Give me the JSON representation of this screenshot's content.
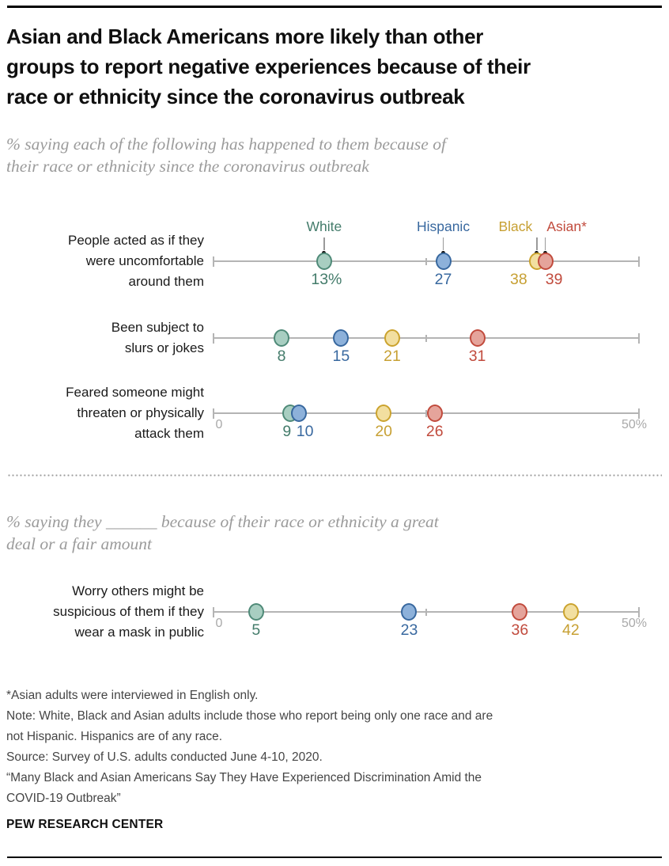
{
  "header": {
    "title_lines": [
      "Asian and Black Americans more likely than other",
      "groups to report negative experiences because of their",
      "race or ethnicity since the coronavirus outbreak"
    ],
    "subtitle_top_lines": [
      "% saying each of the following has happened to them because of",
      "their race or ethnicity since the coronavirus outbreak"
    ],
    "subtitle_bottom_lines": [
      "% saying they ______ because of their race or ethnicity a great",
      "deal or a fair amount"
    ]
  },
  "groups": {
    "white": {
      "label": "White",
      "fill": "#a8cec1",
      "stroke": "#4f8a78",
      "text": "#447c6b"
    },
    "hispanic": {
      "label": "Hispanic",
      "fill": "#8db1da",
      "stroke": "#38689f",
      "text": "#38689f"
    },
    "black": {
      "label": "Black",
      "fill": "#f2dfa0",
      "stroke": "#cba32e",
      "text": "#c7a033"
    },
    "asian": {
      "label": "Asian*",
      "fill": "#e5a49b",
      "stroke": "#c14b3d",
      "text": "#c14b3d"
    }
  },
  "chart_data": {
    "type": "scatter",
    "variant": "dot-plot",
    "axis": {
      "min": 0,
      "max": 50,
      "mid_tick": 25,
      "min_label": "0",
      "max_label": "50%",
      "grid": false
    },
    "legend_position": "above-first-row",
    "sections": [
      {
        "subtitle": "% saying each of the following has happened to them because of their race or ethnicity since the coronavirus outbreak",
        "rows": [
          {
            "label_lines": [
              "People acted as if they",
              "were uncomfortable",
              "around them"
            ],
            "legend": true,
            "axis_labels": false,
            "points": [
              {
                "group": "white",
                "value": 13,
                "display": "13%",
                "label_dx": 3
              },
              {
                "group": "hispanic",
                "value": 27,
                "display": "27",
                "label_dx": 0
              },
              {
                "group": "black",
                "value": 38,
                "display": "38",
                "label_dx": -23
              },
              {
                "group": "asian",
                "value": 39,
                "display": "39",
                "label_dx": 11
              }
            ]
          },
          {
            "label_lines": [
              "Been subject to",
              "slurs or jokes"
            ],
            "legend": false,
            "axis_labels": false,
            "points": [
              {
                "group": "white",
                "value": 8,
                "display": "8",
                "label_dx": 0
              },
              {
                "group": "hispanic",
                "value": 15,
                "display": "15",
                "label_dx": 0
              },
              {
                "group": "black",
                "value": 21,
                "display": "21",
                "label_dx": 0
              },
              {
                "group": "asian",
                "value": 31,
                "display": "31",
                "label_dx": 0
              }
            ]
          },
          {
            "label_lines": [
              "Feared someone might",
              "threaten or physically",
              "attack them"
            ],
            "legend": false,
            "axis_labels": true,
            "points": [
              {
                "group": "white",
                "value": 9,
                "display": "9",
                "label_dx": -4
              },
              {
                "group": "hispanic",
                "value": 10,
                "display": "10",
                "label_dx": 8
              },
              {
                "group": "black",
                "value": 20,
                "display": "20",
                "label_dx": 0
              },
              {
                "group": "asian",
                "value": 26,
                "display": "26",
                "label_dx": 0
              }
            ]
          }
        ]
      },
      {
        "subtitle": "% saying they ______ because of their race or ethnicity a great deal or a fair amount",
        "rows": [
          {
            "label_lines": [
              "Worry others might be",
              "suspicious of them if they",
              "wear a mask in public"
            ],
            "legend": false,
            "axis_labels": true,
            "points": [
              {
                "group": "white",
                "value": 5,
                "display": "5",
                "label_dx": 0
              },
              {
                "group": "hispanic",
                "value": 23,
                "display": "23",
                "label_dx": 0
              },
              {
                "group": "asian",
                "value": 36,
                "display": "36",
                "label_dx": 0
              },
              {
                "group": "black",
                "value": 42,
                "display": "42",
                "label_dx": 0
              }
            ]
          }
        ]
      }
    ]
  },
  "footer": {
    "note_lines": [
      "*Asian adults were interviewed in English only.",
      "Note: White, Black and Asian adults include those who report being only one race and are",
      "not Hispanic. Hispanics are of any race.",
      "Source: Survey of U.S. adults conducted June 4-10, 2020.",
      "“Many Black and Asian Americans Say They Have Experienced Discrimination Amid the",
      "COVID-19 Outbreak”"
    ],
    "brand": "PEW RESEARCH CENTER"
  }
}
